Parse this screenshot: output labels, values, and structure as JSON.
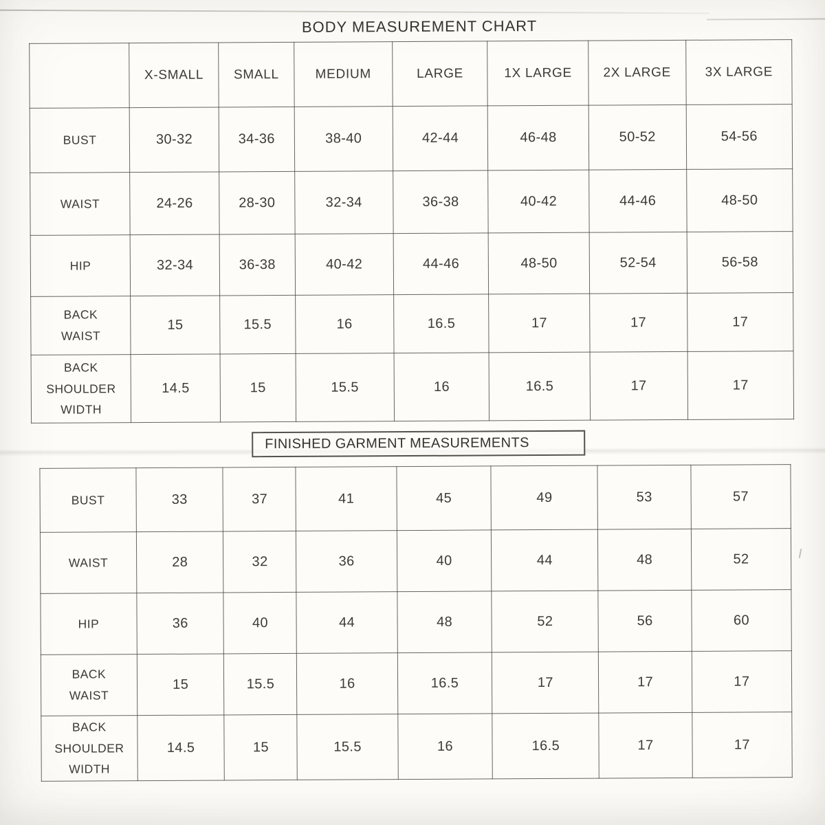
{
  "document": {
    "title": "BODY MEASUREMENT CHART",
    "section2_title": "FINISHED GARMENT MEASUREMENTS"
  },
  "tables": [
    {
      "name": "BODY MEASUREMENT CHART",
      "columns": [
        "",
        "X-SMALL",
        "SMALL",
        "MEDIUM",
        "LARGE",
        "1X LARGE",
        "2X LARGE",
        "3X LARGE"
      ],
      "rows": [
        {
          "label": "BUST",
          "values": [
            "30-32",
            "34-36",
            "38-40",
            "42-44",
            "46-48",
            "50-52",
            "54-56"
          ]
        },
        {
          "label": "WAIST",
          "values": [
            "24-26",
            "28-30",
            "32-34",
            "36-38",
            "40-42",
            "44-46",
            "48-50"
          ]
        },
        {
          "label": "HIP",
          "values": [
            "32-34",
            "36-38",
            "40-42",
            "44-46",
            "48-50",
            "52-54",
            "56-58"
          ]
        },
        {
          "label": "BACK WAIST",
          "values": [
            "15",
            "15.5",
            "16",
            "16.5",
            "17",
            "17",
            "17"
          ]
        },
        {
          "label": "BACK SHOULDER WIDTH",
          "values": [
            "14.5",
            "15",
            "15.5",
            "16",
            "16.5",
            "17",
            "17"
          ]
        }
      ]
    },
    {
      "name": "FINISHED GARMENT MEASUREMENTS",
      "rows": [
        {
          "label": "BUST",
          "values": [
            "33",
            "37",
            "41",
            "45",
            "49",
            "53",
            "57"
          ]
        },
        {
          "label": "WAIST",
          "values": [
            "28",
            "32",
            "36",
            "40",
            "44",
            "48",
            "52"
          ]
        },
        {
          "label": "HIP",
          "values": [
            "36",
            "40",
            "44",
            "48",
            "52",
            "56",
            "60"
          ]
        },
        {
          "label": "BACK WAIST",
          "values": [
            "15",
            "15.5",
            "16",
            "16.5",
            "17",
            "17",
            "17"
          ]
        },
        {
          "label": "BACK SHOULDER WIDTH",
          "values": [
            "14.5",
            "15",
            "15.5",
            "16",
            "16.5",
            "17",
            "17"
          ]
        }
      ]
    }
  ],
  "colors": {
    "paper": "#fdfcf9",
    "ink": "#3c3a34",
    "grid_line": "#3e3b33"
  }
}
